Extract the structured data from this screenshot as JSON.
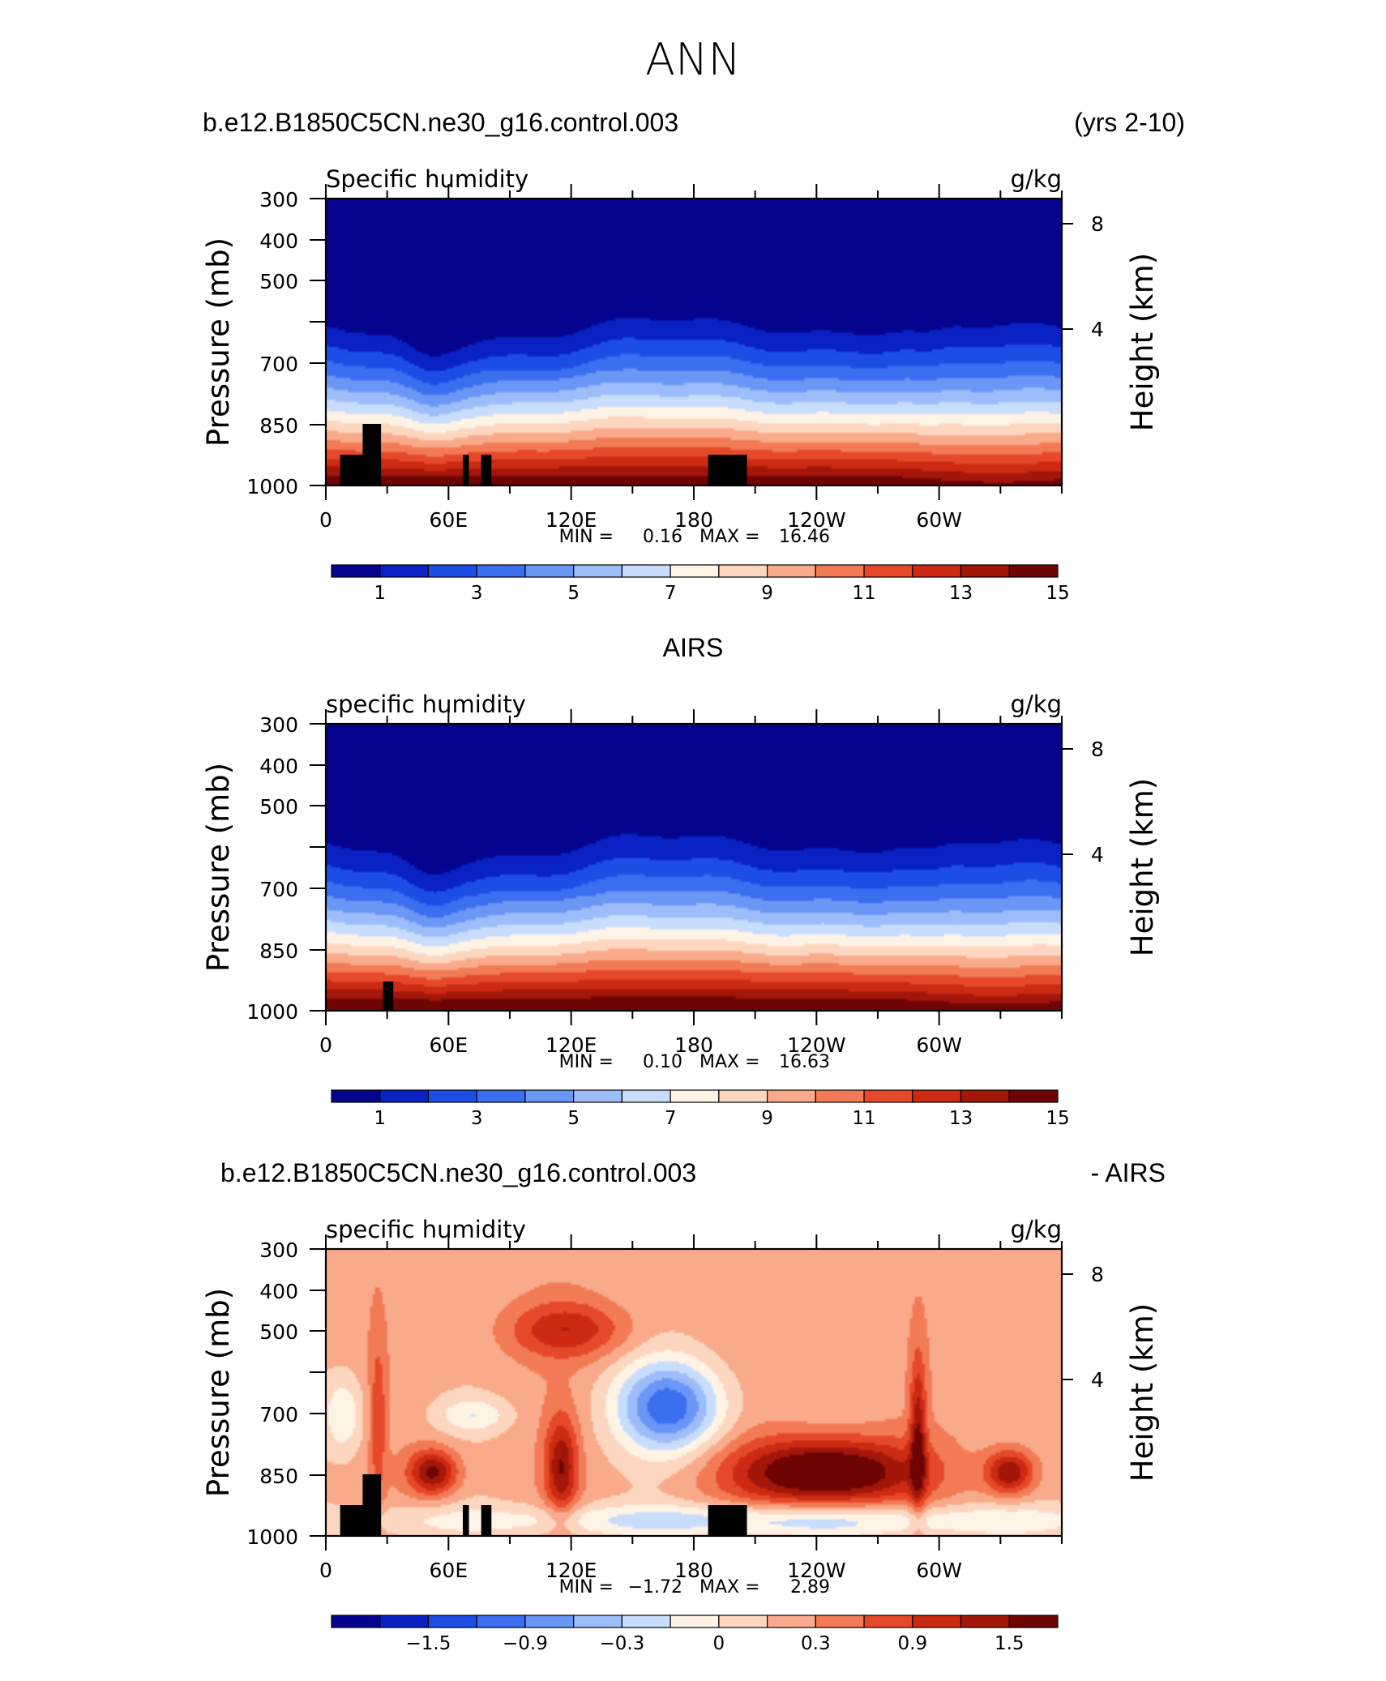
{
  "figure": {
    "title": "ANN",
    "panel1_left_title": "b.e12.B1850C5CN.ne30_g16.control.003",
    "panel1_right_title": "(yrs 2-10)",
    "panel2_center_title": "AIRS",
    "panel3_left_title": "b.e12.B1850C5CN.ne30_g16.control.003",
    "panel3_right_title": "- AIRS"
  },
  "chart_data": [
    {
      "type": "heatmap",
      "variable_label": "Specific humidity",
      "units": "g/kg",
      "ylabel": "Pressure (mb)",
      "ylabel_right": "Height (km)",
      "y_ticks": [
        "300",
        "400",
        "500",
        "",
        "700",
        "850",
        "1000"
      ],
      "y_right_ticks": [
        "8",
        "4"
      ],
      "x_ticks": [
        "0",
        "60E",
        "120E",
        "180",
        "120W",
        "60W"
      ],
      "min_label": "MIN =",
      "min_value": "0.16",
      "max_label": "MAX =",
      "max_value": "16.46",
      "colorbar_labels": [
        "1",
        "3",
        "5",
        "7",
        "9",
        "11",
        "13",
        "15"
      ],
      "colorbar_colors": [
        "#04048f",
        "#0a22c4",
        "#1c4ee6",
        "#3c6ef0",
        "#6a96f6",
        "#9cbcfa",
        "#c8dcfc",
        "#fff3e6",
        "#fdd6c0",
        "#f9aa8a",
        "#f27b56",
        "#e5492a",
        "#cc2a12",
        "#a2170a",
        "#6e0404"
      ],
      "levels_range": [
        0,
        16
      ],
      "field_range": [
        0.16,
        16.46
      ]
    },
    {
      "type": "heatmap",
      "variable_label": "specific humidity",
      "units": "g/kg",
      "ylabel": "Pressure (mb)",
      "ylabel_right": "Height (km)",
      "y_ticks": [
        "300",
        "400",
        "500",
        "",
        "700",
        "850",
        "1000"
      ],
      "y_right_ticks": [
        "8",
        "4"
      ],
      "x_ticks": [
        "0",
        "60E",
        "120E",
        "180",
        "120W",
        "60W"
      ],
      "min_label": "MIN =",
      "min_value": "0.10",
      "max_label": "MAX =",
      "max_value": "16.63",
      "colorbar_labels": [
        "1",
        "3",
        "5",
        "7",
        "9",
        "11",
        "13",
        "15"
      ],
      "colorbar_colors": [
        "#04048f",
        "#0a22c4",
        "#1c4ee6",
        "#3c6ef0",
        "#6a96f6",
        "#9cbcfa",
        "#c8dcfc",
        "#fff3e6",
        "#fdd6c0",
        "#f9aa8a",
        "#f27b56",
        "#e5492a",
        "#cc2a12",
        "#a2170a",
        "#6e0404"
      ],
      "levels_range": [
        0,
        16
      ],
      "field_range": [
        0.1,
        16.63
      ]
    },
    {
      "type": "heatmap",
      "variable_label": "specific humidity",
      "units": "g/kg",
      "ylabel": "Pressure (mb)",
      "ylabel_right": "Height (km)",
      "y_ticks": [
        "300",
        "400",
        "500",
        "",
        "700",
        "850",
        "1000"
      ],
      "y_right_ticks": [
        "8",
        "4"
      ],
      "x_ticks": [
        "0",
        "60E",
        "120E",
        "180",
        "120W",
        "60W"
      ],
      "min_label": "MIN =",
      "min_value": "−1.72",
      "max_label": "MAX =",
      "max_value": "2.89",
      "colorbar_labels": [
        "−1.5",
        "−0.9",
        "−0.3",
        "0",
        "0.3",
        "0.9",
        "1.5"
      ],
      "colorbar_colors": [
        "#04048f",
        "#0a22c4",
        "#1c4ee6",
        "#3c6ef0",
        "#6a96f6",
        "#9cbcfa",
        "#c8dcfc",
        "#fff3e6",
        "#fdd6c0",
        "#f9aa8a",
        "#f27b56",
        "#e5492a",
        "#cc2a12",
        "#a2170a",
        "#6e0404"
      ],
      "levels_range": [
        -2.1,
        2.1
      ],
      "field_range": [
        -1.72,
        2.89
      ]
    }
  ]
}
